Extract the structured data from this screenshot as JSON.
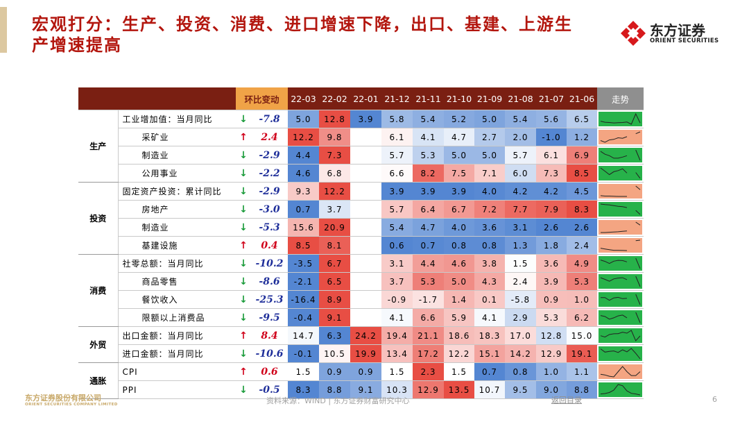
{
  "header": {
    "title": "宏观打分：生产、投资、消费、进口增速下降，出口、基建、上游生产增速提高",
    "logo_cn": "东方证券",
    "logo_en": "ORIENT SECURITIES"
  },
  "table": {
    "columns": [
      "环比变动",
      "22-03",
      "22-02",
      "22-01",
      "21-12",
      "21-11",
      "21-10",
      "21-09",
      "21-08",
      "21-07",
      "21-06",
      "走势"
    ],
    "groups": [
      {
        "name": "生产",
        "rows": [
          {
            "label": "工业增加值：当月同比",
            "arrow": "↓",
            "change": "-7.8",
            "values": [
              "5.0",
              "12.8",
              "3.9",
              "5.8",
              "5.4",
              "5.2",
              "5.0",
              "5.4",
              "5.6",
              "6.5"
            ],
            "trend_color": "#27b24a"
          },
          {
            "label": "采矿业",
            "arrow": "↑",
            "change": "2.4",
            "values": [
              "12.2",
              "9.8",
              null,
              "6.1",
              "4.1",
              "4.7",
              "2.7",
              "2.0",
              "-1.0",
              "1.2"
            ],
            "trend_color": "#f4a582"
          },
          {
            "label": "制造业",
            "arrow": "↓",
            "change": "-2.9",
            "values": [
              "4.4",
              "7.3",
              null,
              "5.7",
              "5.3",
              "5.0",
              "5.0",
              "5.7",
              "6.1",
              "6.9"
            ],
            "trend_color": "#27b24a"
          },
          {
            "label": "公用事业",
            "arrow": "↓",
            "change": "-2.2",
            "values": [
              "4.6",
              "6.8",
              null,
              "6.6",
              "8.2",
              "7.5",
              "7.1",
              "6.0",
              "7.3",
              "8.5"
            ],
            "trend_color": "#27b24a"
          }
        ]
      },
      {
        "name": "投资",
        "rows": [
          {
            "label": "固定资产投资：累计同比",
            "arrow": "↓",
            "change": "-2.9",
            "values": [
              "9.3",
              "12.2",
              null,
              "3.9",
              "3.9",
              "3.9",
              "4.0",
              "4.2",
              "4.2",
              "4.5"
            ],
            "trend_color": "#f4a582"
          },
          {
            "label": "房地产",
            "arrow": "↓",
            "change": "-3.0",
            "values": [
              "0.7",
              "3.7",
              null,
              "5.7",
              "6.4",
              "6.7",
              "7.2",
              "7.7",
              "7.9",
              "8.3"
            ],
            "trend_color": "#27b24a"
          },
          {
            "label": "制造业",
            "arrow": "↓",
            "change": "-5.3",
            "values": [
              "15.6",
              "20.9",
              null,
              "5.4",
              "4.7",
              "4.0",
              "3.6",
              "3.1",
              "2.6",
              "2.6"
            ],
            "trend_color": "#f4a582"
          },
          {
            "label": "基建设施",
            "arrow": "↑",
            "change": "0.4",
            "values": [
              "8.5",
              "8.1",
              null,
              "0.6",
              "0.7",
              "0.8",
              "0.8",
              "1.3",
              "1.8",
              "2.4"
            ],
            "trend_color": "#f4a582"
          }
        ]
      },
      {
        "name": "消费",
        "rows": [
          {
            "label": "社零总额：当月同比",
            "arrow": "↓",
            "change": "-10.2",
            "values": [
              "-3.5",
              "6.7",
              null,
              "3.1",
              "4.4",
              "4.6",
              "3.8",
              "1.5",
              "3.6",
              "4.9"
            ],
            "trend_color": "#27b24a"
          },
          {
            "label": "商品零售",
            "arrow": "↓",
            "change": "-8.6",
            "values": [
              "-2.1",
              "6.5",
              null,
              "3.7",
              "5.3",
              "5.0",
              "4.3",
              "2.4",
              "3.9",
              "5.3"
            ],
            "trend_color": "#27b24a"
          },
          {
            "label": "餐饮收入",
            "arrow": "↓",
            "change": "-25.3",
            "values": [
              "-16.4",
              "8.9",
              null,
              "-0.9",
              "-1.7",
              "1.4",
              "0.1",
              "-5.8",
              "0.9",
              "1.0"
            ],
            "trend_color": "#27b24a"
          },
          {
            "label": "限额以上消费品",
            "arrow": "↓",
            "change": "-9.5",
            "values": [
              "-0.4",
              "9.1",
              null,
              "4.1",
              "6.6",
              "5.9",
              "4.1",
              "2.9",
              "5.3",
              "6.2"
            ],
            "trend_color": "#27b24a"
          }
        ]
      },
      {
        "name": "外贸",
        "rows": [
          {
            "label": "出口金额：当月同比",
            "arrow": "↑",
            "change": "8.4",
            "values": [
              "14.7",
              "6.3",
              "24.2",
              "19.4",
              "21.1",
              "18.6",
              "18.3",
              "17.0",
              "12.8",
              "15.0"
            ],
            "trend_color": "#27b24a"
          },
          {
            "label": "进口金额：当月同比",
            "arrow": "↓",
            "change": "-10.6",
            "values": [
              "-0.1",
              "10.5",
              "19.9",
              "13.4",
              "17.2",
              "12.2",
              "15.1",
              "14.2",
              "12.9",
              "19.1"
            ],
            "trend_color": "#27b24a"
          }
        ]
      },
      {
        "name": "通胀",
        "rows": [
          {
            "label": "CPI",
            "arrow": "↑",
            "change": "0.6",
            "values": [
              "1.5",
              "0.9",
              "0.9",
              "1.5",
              "2.3",
              "1.5",
              "0.7",
              "0.8",
              "1.0",
              "1.1"
            ],
            "trend_color": "#f4a582"
          },
          {
            "label": "PPI",
            "arrow": "↓",
            "change": "-0.5",
            "values": [
              "8.3",
              "8.8",
              "9.1",
              "10.3",
              "12.9",
              "13.5",
              "10.7",
              "9.5",
              "9.0",
              "8.8"
            ],
            "trend_color": "#27b24a"
          }
        ]
      }
    ]
  },
  "footer": {
    "company_cn": "东方证券股份有限公司",
    "company_en": "ORIENT SECURITIES COMPANY LIMITED",
    "source": "资料来源：WIND | 东方证券财富研究中心",
    "link": "返回目录",
    "page": "6"
  }
}
